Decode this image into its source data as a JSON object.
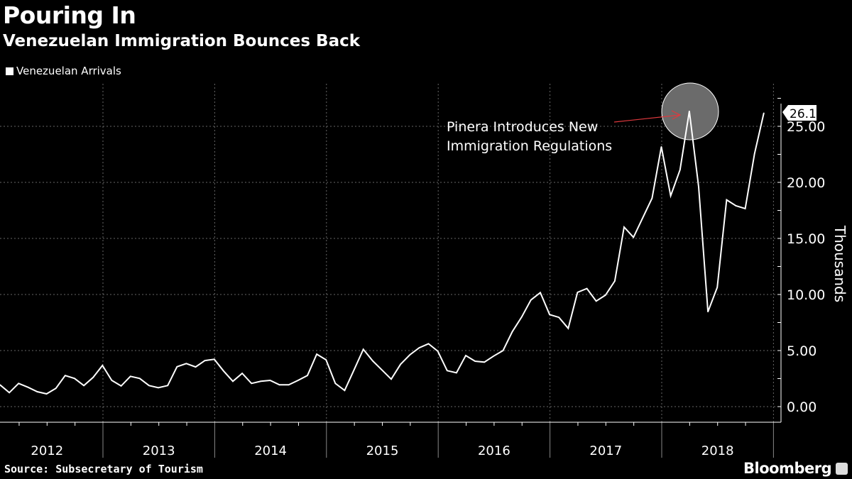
{
  "header": {
    "title": "Pouring In",
    "subtitle": "Venezuelan Immigration Bounces Back"
  },
  "footer": {
    "source": "Source: Subsecretary of Tourism",
    "brand": "Bloomberg"
  },
  "chart_data": {
    "type": "line",
    "title": "Pouring In",
    "subtitle": "Venezuelan Immigration Bounces Back",
    "ylabel": "Thousands",
    "xlabel": "",
    "ylim": [
      -1.4,
      28.5
    ],
    "yticks": [
      "0.00",
      "5.00",
      "10.00",
      "15.00",
      "20.00",
      "25.00"
    ],
    "xtick_labels": [
      "2012",
      "2013",
      "2014",
      "2015",
      "2016",
      "2017",
      "2018"
    ],
    "grid": true,
    "legend_position": "top-left",
    "colors": {
      "background": "#000000",
      "line": "#ffffff",
      "annotation_arrow": "#e0393e",
      "highlight_circle": "#6b6b6b"
    },
    "series": [
      {
        "name": "Venezuelan Arrivals",
        "start": "2012-02",
        "frequency": "monthly",
        "values": [
          1.94,
          1.25,
          2.07,
          1.73,
          1.33,
          1.14,
          1.63,
          2.77,
          2.51,
          1.88,
          2.61,
          3.67,
          2.34,
          1.84,
          2.7,
          2.51,
          1.88,
          1.69,
          1.88,
          3.56,
          3.84,
          3.54,
          4.11,
          4.22,
          3.18,
          2.26,
          2.97,
          2.07,
          2.26,
          2.34,
          1.94,
          1.94,
          2.34,
          2.77,
          4.68,
          4.18,
          2.07,
          1.44,
          3.27,
          5.11,
          4.09,
          3.27,
          2.45,
          3.78,
          4.62,
          5.25,
          5.61,
          4.94,
          3.21,
          3.02,
          4.56,
          4.05,
          3.97,
          4.51,
          5.0,
          6.69,
          7.99,
          9.51,
          10.17,
          8.21,
          7.96,
          6.98,
          10.19,
          10.53,
          9.41,
          9.94,
          11.2,
          16.01,
          15.1,
          16.85,
          18.59,
          23.18,
          18.8,
          21.12,
          26.35,
          19.6,
          8.46,
          10.63,
          18.44,
          17.91,
          17.66,
          22.55,
          26.18
        ]
      }
    ],
    "last_value_label": "26.18",
    "annotations": [
      {
        "text_line1": "Pinera Introduces New",
        "text_line2": "Immigration Regulations",
        "target_date": "2018-04"
      }
    ]
  }
}
